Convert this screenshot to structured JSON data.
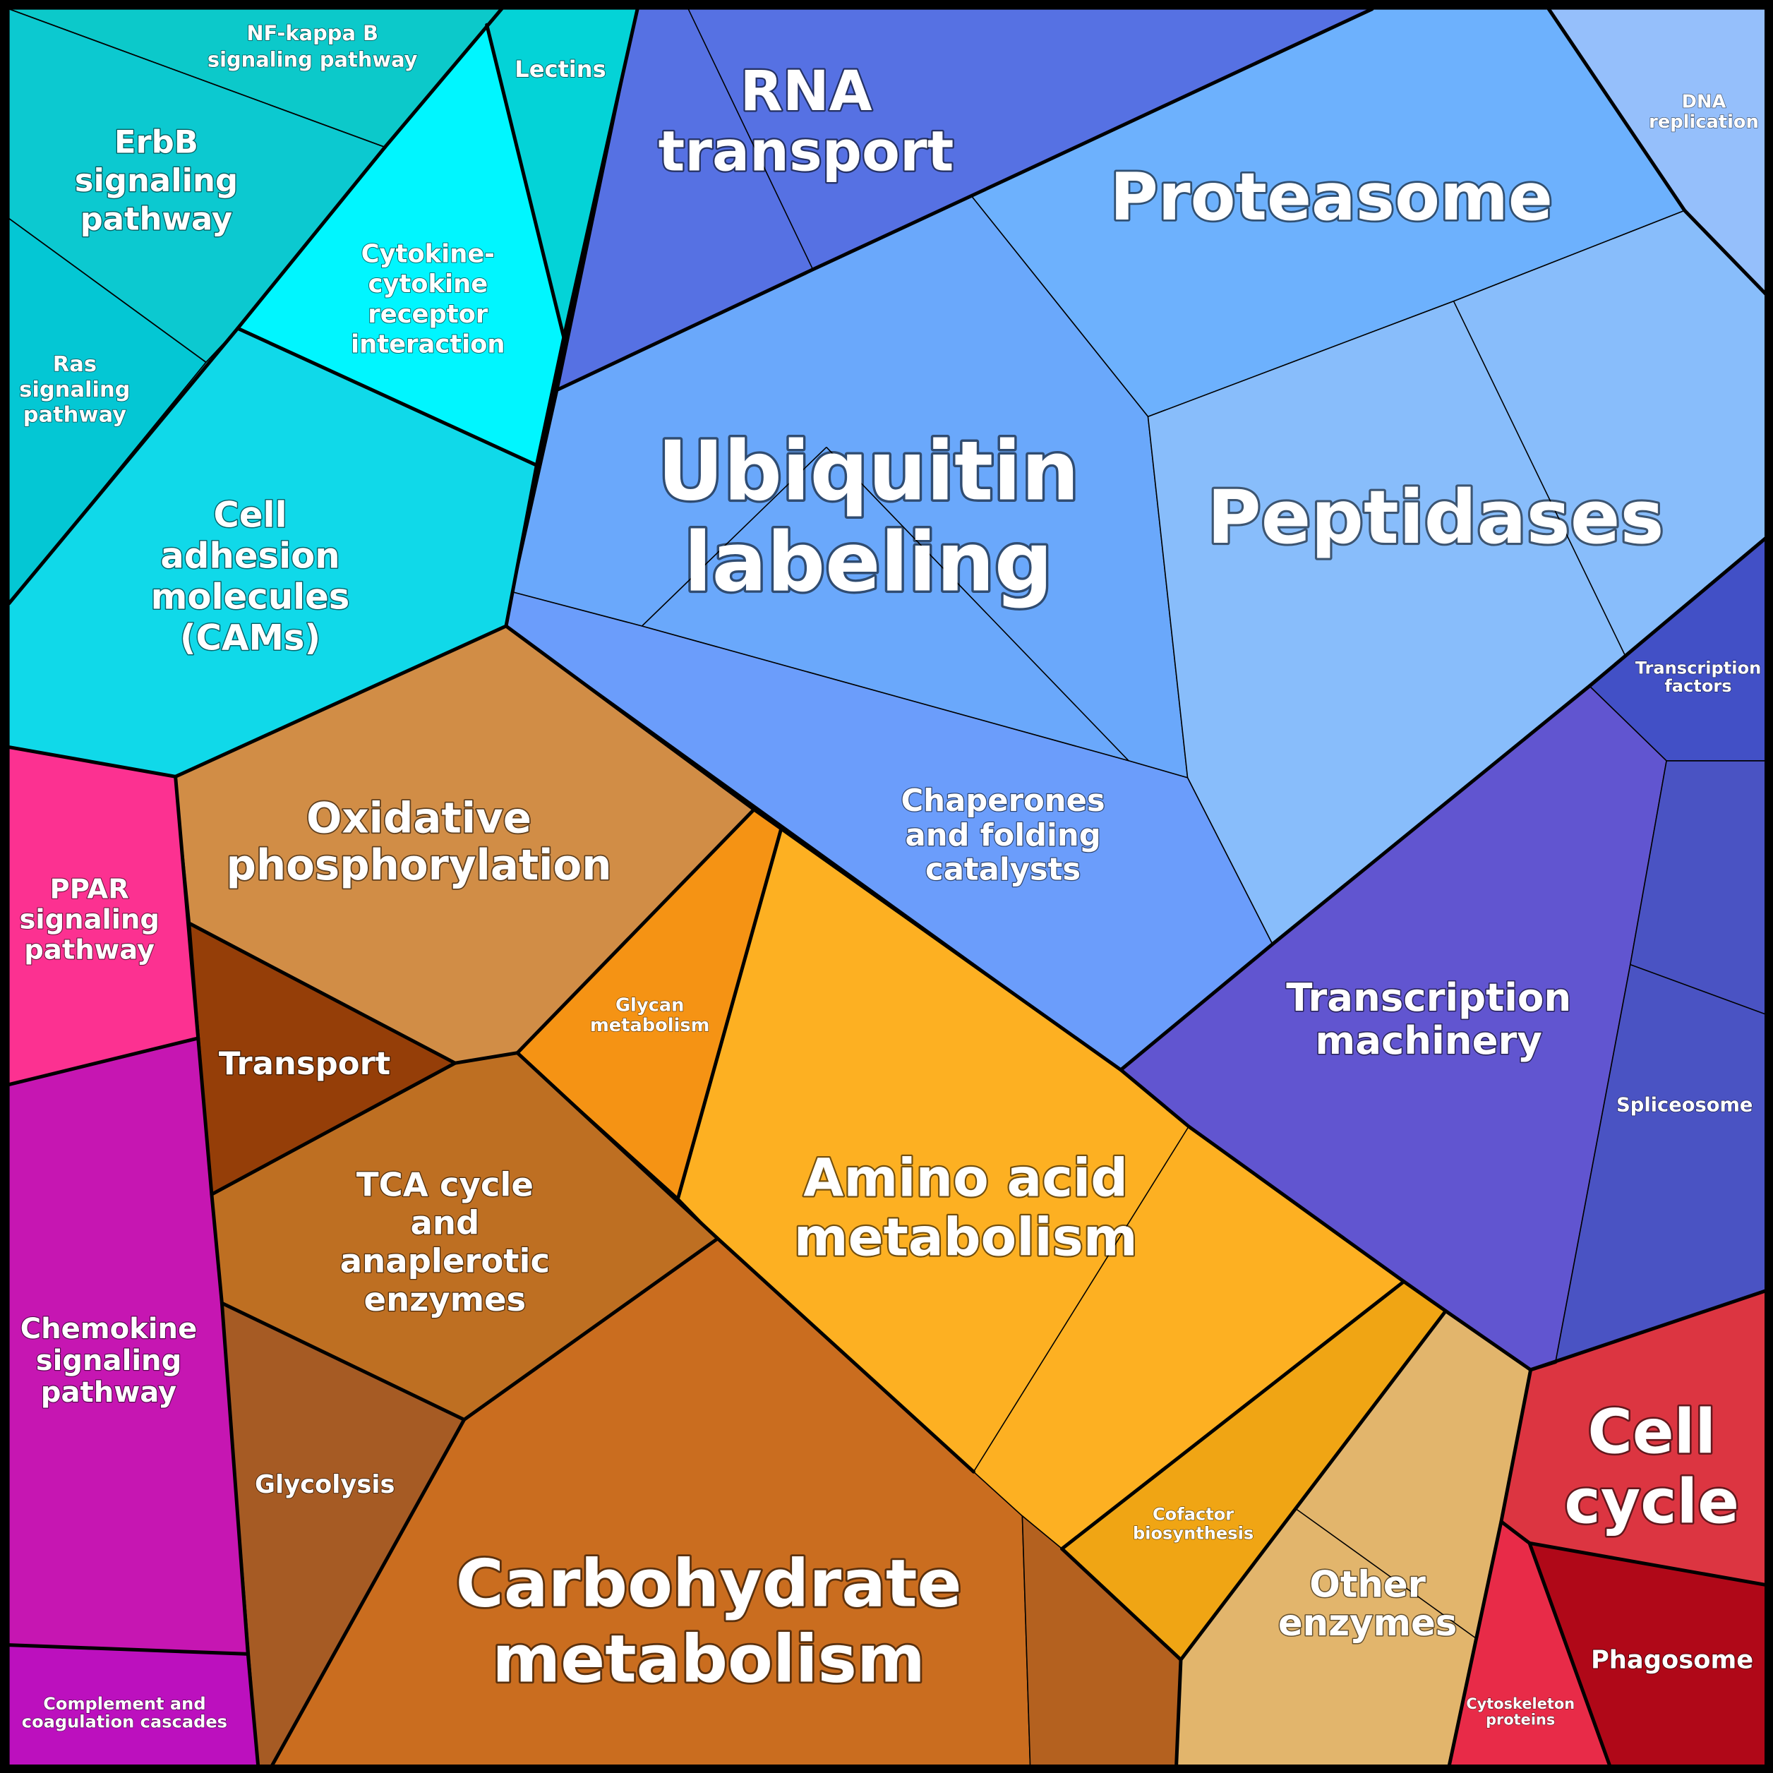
{
  "map": {
    "cells": [
      {
        "id": "nfkb",
        "label": [
          "NF-kappa B",
          "signaling pathway"
        ],
        "color": "#0cc9ca"
      },
      {
        "id": "lectins",
        "label": [
          "Lectins"
        ],
        "color": "#04d3d7"
      },
      {
        "id": "erbb",
        "label": [
          "ErbB",
          "signaling",
          "pathway"
        ],
        "color": "#0cc9d0"
      },
      {
        "id": "cytokine",
        "label": [
          "Cytokine-",
          "cytokine",
          "receptor",
          "interaction"
        ],
        "color": "#00f6ff"
      },
      {
        "id": "ras",
        "label": [
          "Ras",
          "signaling",
          "pathway"
        ],
        "color": "#04c7d4"
      },
      {
        "id": "cams",
        "label": [
          "Cell",
          "adhesion",
          "molecules",
          "(CAMs)"
        ],
        "color": "#10d9e9"
      },
      {
        "id": "rna_transport",
        "label": [
          "RNA",
          "transport"
        ],
        "color": "#5671e3"
      },
      {
        "id": "proteasome",
        "label": [
          "Proteasome"
        ],
        "color": "#6db1fd"
      },
      {
        "id": "dna_replication",
        "label": [
          "DNA",
          "replication"
        ],
        "color": "#95bffb"
      },
      {
        "id": "ubiquitin",
        "label": [
          "Ubiquitin",
          "labeling"
        ],
        "color": "#6aa8fb"
      },
      {
        "id": "peptidases",
        "label": [
          "Peptidases"
        ],
        "color": "#88bdfb"
      },
      {
        "id": "chaperones",
        "label": [
          "Chaperones",
          "and folding",
          "catalysts"
        ],
        "color": "#6b9dfb"
      },
      {
        "id": "transcription_factors",
        "label": [
          "Transcription",
          "factors"
        ],
        "color": "#4250c6"
      },
      {
        "id": "transcription_machinery",
        "label": [
          "Transcription",
          "machinery"
        ],
        "color": "#6155d0"
      },
      {
        "id": "spliceosome",
        "label": [
          "Spliceosome"
        ],
        "color": "#4a53c3"
      },
      {
        "id": "oxphos",
        "label": [
          "Oxidative",
          "phosphorylation"
        ],
        "color": "#d18d46"
      },
      {
        "id": "transport",
        "label": [
          "Transport"
        ],
        "color": "#953e08"
      },
      {
        "id": "tca",
        "label": [
          "TCA cycle",
          "and",
          "anaplerotic",
          "enzymes"
        ],
        "color": "#be6f22"
      },
      {
        "id": "glycolysis",
        "label": [
          "Glycolysis"
        ],
        "color": "#a65b24"
      },
      {
        "id": "carbohydrate",
        "label": [
          "Carbohydrate",
          "metabolism"
        ],
        "color": "#ca6d1f"
      },
      {
        "id": "glycan",
        "label": [
          "Glycan",
          "metabolism"
        ],
        "color": "#f59314"
      },
      {
        "id": "amino_acid",
        "label": [
          "Amino acid",
          "metabolism"
        ],
        "color": "#fdb022"
      },
      {
        "id": "cofactor",
        "label": [
          "Cofactor",
          "biosynthesis"
        ],
        "color": "#f0a514"
      },
      {
        "id": "other_enzymes",
        "label": [
          "Other",
          "enzymes"
        ],
        "color": "#e2b56c"
      },
      {
        "id": "ppar",
        "label": [
          "PPAR",
          "signaling",
          "pathway"
        ],
        "color": "#fc3191"
      },
      {
        "id": "chemokine",
        "label": [
          "Chemokine",
          "signaling",
          "pathway"
        ],
        "color": "#c616b2"
      },
      {
        "id": "complement",
        "label": [
          "Complement and",
          "coagulation cascades"
        ],
        "color": "#bc10be"
      },
      {
        "id": "cell_cycle",
        "label": [
          "Cell",
          "cycle"
        ],
        "color": "#dc3541"
      },
      {
        "id": "cytoskeleton",
        "label": [
          "Cytoskeleton",
          "proteins"
        ],
        "color": "#e82b48"
      },
      {
        "id": "phagosome",
        "label": [
          "Phagosome"
        ],
        "color": "#b00818"
      },
      {
        "id": "carbohydrate_side",
        "label": [],
        "color": "#b4611f"
      }
    ]
  }
}
